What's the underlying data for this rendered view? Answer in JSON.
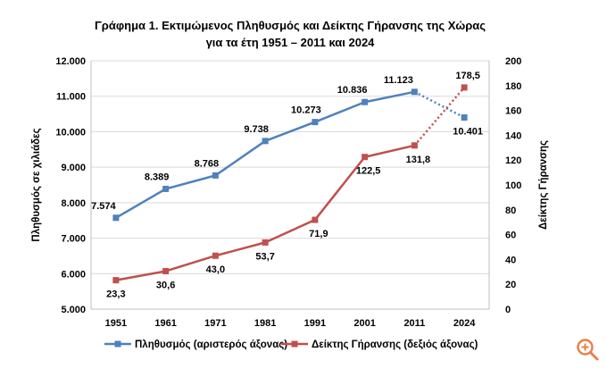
{
  "chart_data": {
    "type": "line",
    "title": "Γράφημα 1. Εκτιμώμενος Πληθυσμός και Δείκτης Γήρανσης της Χώρας",
    "subtitle": "για τα έτη 1951 – 2011 και 2024",
    "categories": [
      "1951",
      "1961",
      "1971",
      "1981",
      "1991",
      "2001",
      "2011",
      "2024"
    ],
    "ylabel_left": "Πληθυσμός σε χιλιάδες",
    "ylabel_right": "Δείκτης Γήρανσης",
    "ylim_left": [
      5000,
      12000
    ],
    "ylim_right": [
      0,
      200
    ],
    "yticks_left": [
      "5.000",
      "6.000",
      "7.000",
      "8.000",
      "9.000",
      "10.000",
      "11.000",
      "12.000"
    ],
    "yticks_right": [
      "0",
      "20",
      "40",
      "60",
      "80",
      "100",
      "120",
      "140",
      "160",
      "180",
      "200"
    ],
    "grid": true,
    "legend_position": "bottom",
    "series": [
      {
        "name": "Πληθυσμός (αριστερός άξονας)",
        "axis": "left",
        "color": "#4f81bd",
        "values": [
          7574,
          8389,
          8768,
          9738,
          10273,
          10836,
          11123,
          10401
        ],
        "labels": [
          "7.574",
          "8.389",
          "8.768",
          "9.738",
          "10.273",
          "10.836",
          "11.123",
          "10.401"
        ],
        "last_segment_dotted": true
      },
      {
        "name": "Δείκτης Γήρανσης (δεξιός άξονας)",
        "axis": "right",
        "color": "#c0504d",
        "values": [
          23.3,
          30.6,
          43.0,
          53.7,
          71.9,
          122.5,
          131.8,
          178.5
        ],
        "labels": [
          "23,3",
          "30,6",
          "43,0",
          "53,7",
          "71,9",
          "122,5",
          "131,8",
          "178,5"
        ],
        "last_segment_dotted": true
      }
    ]
  },
  "icons": {
    "zoom": "zoom-in-icon",
    "zoom_color": "#e8824a"
  }
}
